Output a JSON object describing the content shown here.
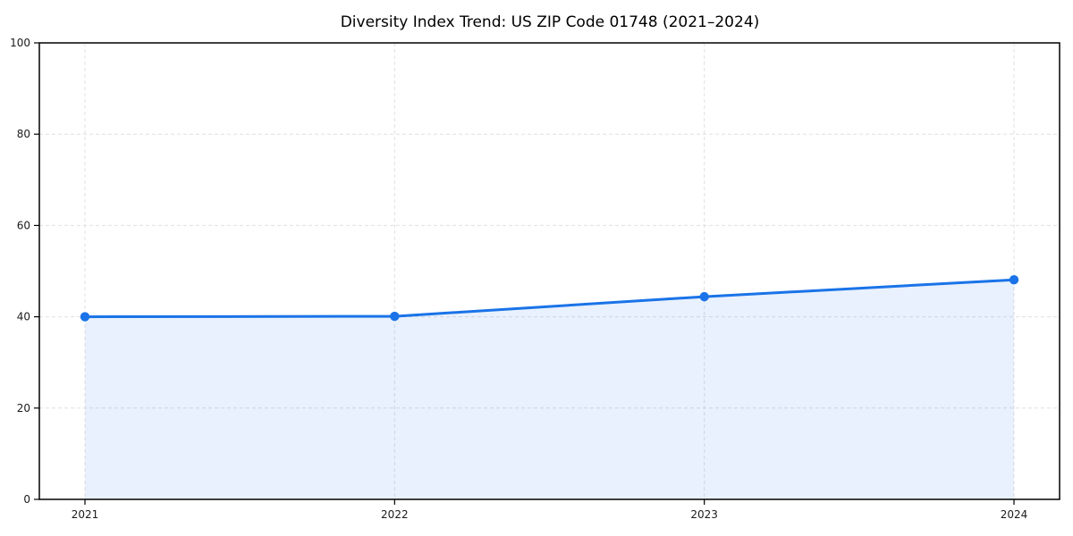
{
  "chart_data": {
    "type": "line",
    "title": "Diversity Index Trend: US ZIP Code 01748 (2021–2024)",
    "series": [
      {
        "name": "Diversity Index",
        "x": [
          "2021",
          "2022",
          "2023",
          "2024"
        ],
        "values": [
          40.0,
          40.1,
          44.4,
          48.1
        ]
      }
    ],
    "xticks": [
      "2021",
      "2022",
      "2023",
      "2024"
    ],
    "yticks": [
      0,
      20,
      40,
      60,
      80,
      100
    ],
    "ylim": [
      0,
      100
    ],
    "xlabel": "",
    "ylabel": "",
    "grid": true,
    "legend": false,
    "style": {
      "line_color": "#1a73e8",
      "fill_color": "rgba(26,115,232,0.10)",
      "marker": "circle",
      "marker_color": "#1a73e8",
      "grid_color": "#e0e0e0",
      "axis_color": "#000000",
      "tick_label_color": "#1a1a1a",
      "title_color": "#000000",
      "background": "#ffffff"
    }
  }
}
